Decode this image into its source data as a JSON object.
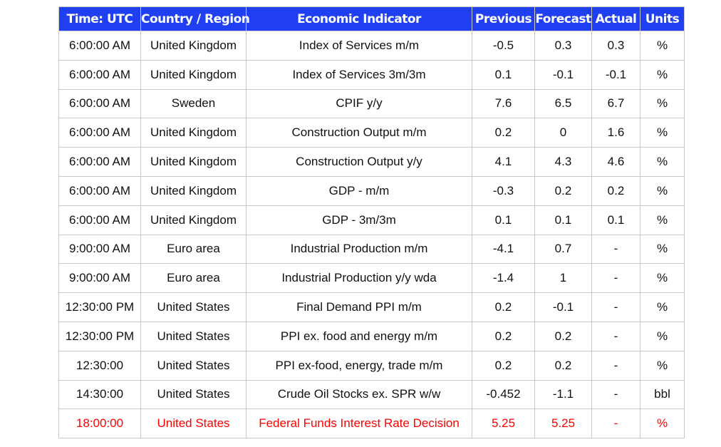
{
  "table": {
    "header": [
      "Time: UTC",
      "Country / Region",
      "Economic Indicator",
      "Previous",
      "Forecast",
      "Actual",
      "Units"
    ],
    "rows": [
      [
        "6:00:00 AM",
        "United Kingdom",
        "Index of Services m/m",
        "-0.5",
        "0.3",
        "0.3",
        "%"
      ],
      [
        "6:00:00 AM",
        "United Kingdom",
        "Index of Services 3m/3m",
        "0.1",
        "-0.1",
        "-0.1",
        "%"
      ],
      [
        "6:00:00 AM",
        "Sweden",
        "CPIF y/y",
        "7.6",
        "6.5",
        "6.7",
        "%"
      ],
      [
        "6:00:00 AM",
        "United Kingdom",
        "Construction Output m/m",
        "0.2",
        "0",
        "1.6",
        "%"
      ],
      [
        "6:00:00 AM",
        "United Kingdom",
        "Construction Output y/y",
        "4.1",
        "4.3",
        "4.6",
        "%"
      ],
      [
        "6:00:00 AM",
        "United Kingdom",
        "GDP - m/m",
        "-0.3",
        "0.2",
        "0.2",
        "%"
      ],
      [
        "6:00:00 AM",
        "United Kingdom",
        "GDP - 3m/3m",
        "0.1",
        "0.1",
        "0.1",
        "%"
      ],
      [
        "9:00:00 AM",
        "Euro area",
        "Industrial Production m/m",
        "-4.1",
        "0.7",
        "-",
        "%"
      ],
      [
        "9:00:00 AM",
        "Euro area",
        "Industrial Production y/y wda",
        "-1.4",
        "1",
        "-",
        "%"
      ],
      [
        "12:30:00 PM",
        "United States",
        "Final Demand PPI m/m",
        "0.2",
        "-0.1",
        "-",
        "%"
      ],
      [
        "12:30:00 PM",
        "United States",
        "PPI ex. food and energy m/m",
        "0.2",
        "0.2",
        "-",
        "%"
      ],
      [
        "12:30:00",
        "United States",
        "PPI ex-food, energy, trade m/m",
        "0.2",
        "0.2",
        "-",
        "%"
      ],
      [
        "14:30:00",
        "United States",
        "Crude Oil Stocks ex. SPR w/w",
        "-0.452",
        "-1.1",
        "-",
        "bbl"
      ],
      [
        "18:00:00",
        "United States",
        "Federal Funds Interest Rate Decision",
        "5.25",
        "5.25",
        "-",
        "%"
      ]
    ]
  }
}
